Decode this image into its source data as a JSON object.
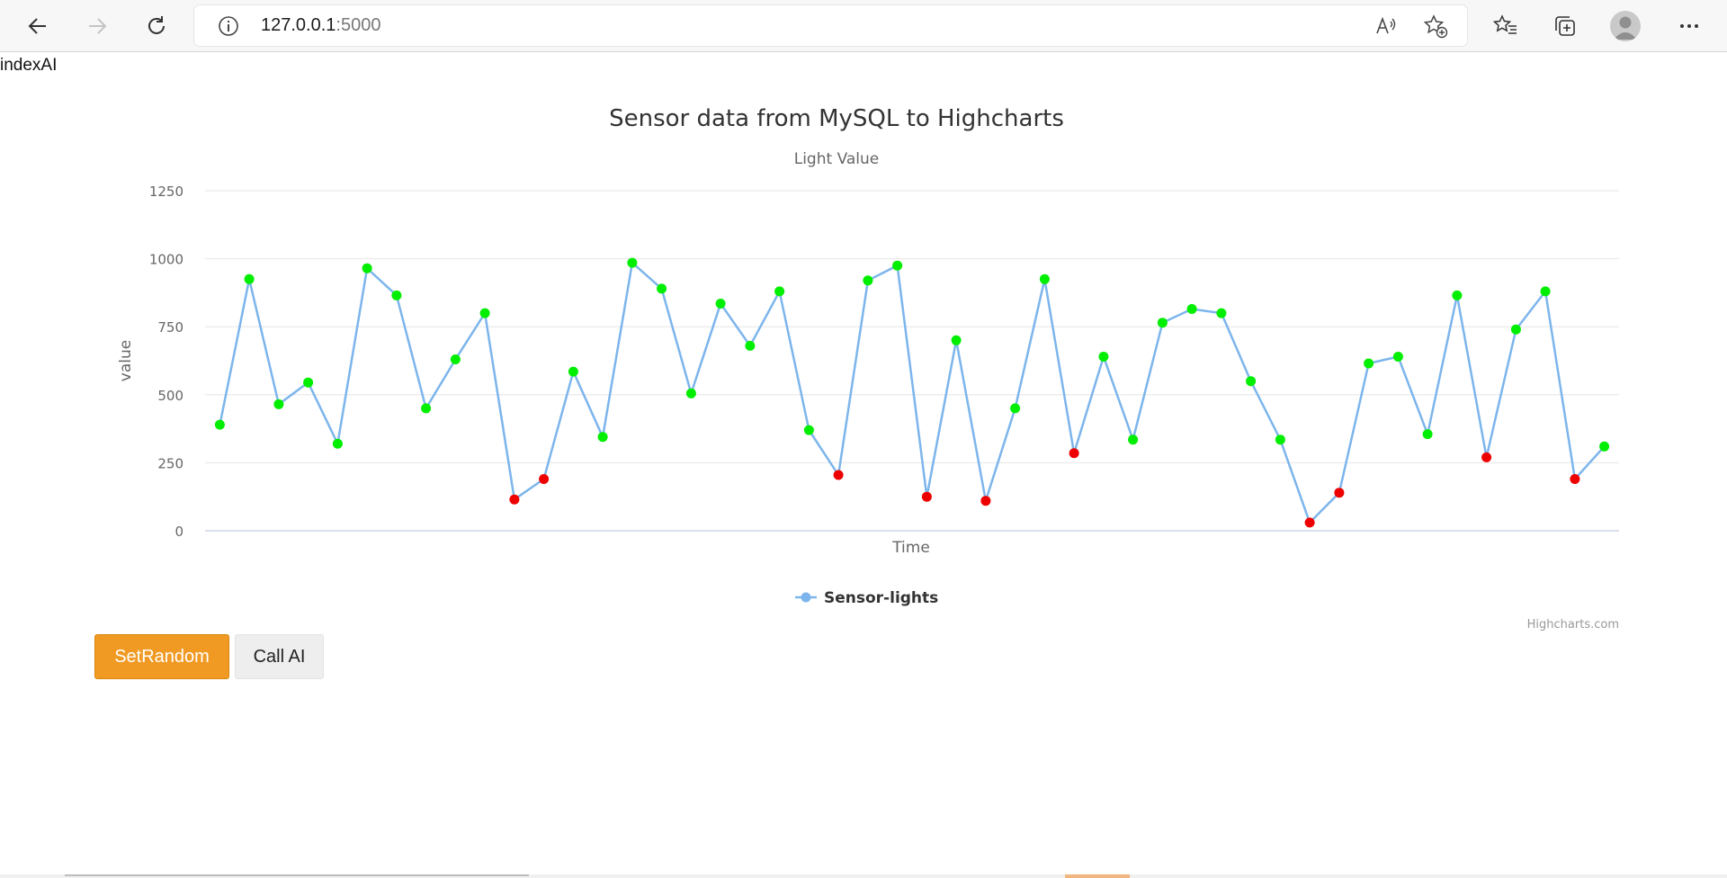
{
  "browser": {
    "url_host": "127.0.0.1",
    "url_port": ":5000",
    "icons": [
      "back-icon",
      "forward-icon",
      "refresh-icon",
      "site-info-icon",
      "read-aloud-icon",
      "add-favorite-icon",
      "favorites-icon",
      "collections-icon",
      "profile-icon",
      "more-icon"
    ]
  },
  "page": {
    "label": "indexAI"
  },
  "chart_data": {
    "type": "line",
    "title": "Sensor data from MySQL to Highcharts",
    "subtitle": "Light Value",
    "xlabel": "Time",
    "ylabel": "value",
    "ylim": [
      0,
      1250
    ],
    "yticks": [
      "0",
      "250",
      "500",
      "750",
      "1000",
      "1250"
    ],
    "grid": true,
    "legend": "bottom-center",
    "credits": "Highcharts.com",
    "threshold": 300,
    "colors": {
      "line": "#7cb5ec",
      "normal": "#00ee00",
      "low": "#ee0000",
      "grid": "#e6e6e6",
      "text": "#333333"
    },
    "series": [
      {
        "name": "Sensor-lights",
        "values": [
          390,
          925,
          465,
          545,
          320,
          965,
          865,
          450,
          630,
          800,
          115,
          190,
          585,
          345,
          985,
          890,
          505,
          835,
          680,
          880,
          370,
          205,
          920,
          975,
          125,
          700,
          110,
          450,
          925,
          285,
          640,
          335,
          765,
          815,
          800,
          550,
          335,
          30,
          140,
          615,
          640,
          355,
          865,
          270,
          740,
          880,
          190,
          310
        ]
      }
    ]
  },
  "buttons": {
    "set_random": "SetRandom",
    "call_ai": "Call AI"
  }
}
